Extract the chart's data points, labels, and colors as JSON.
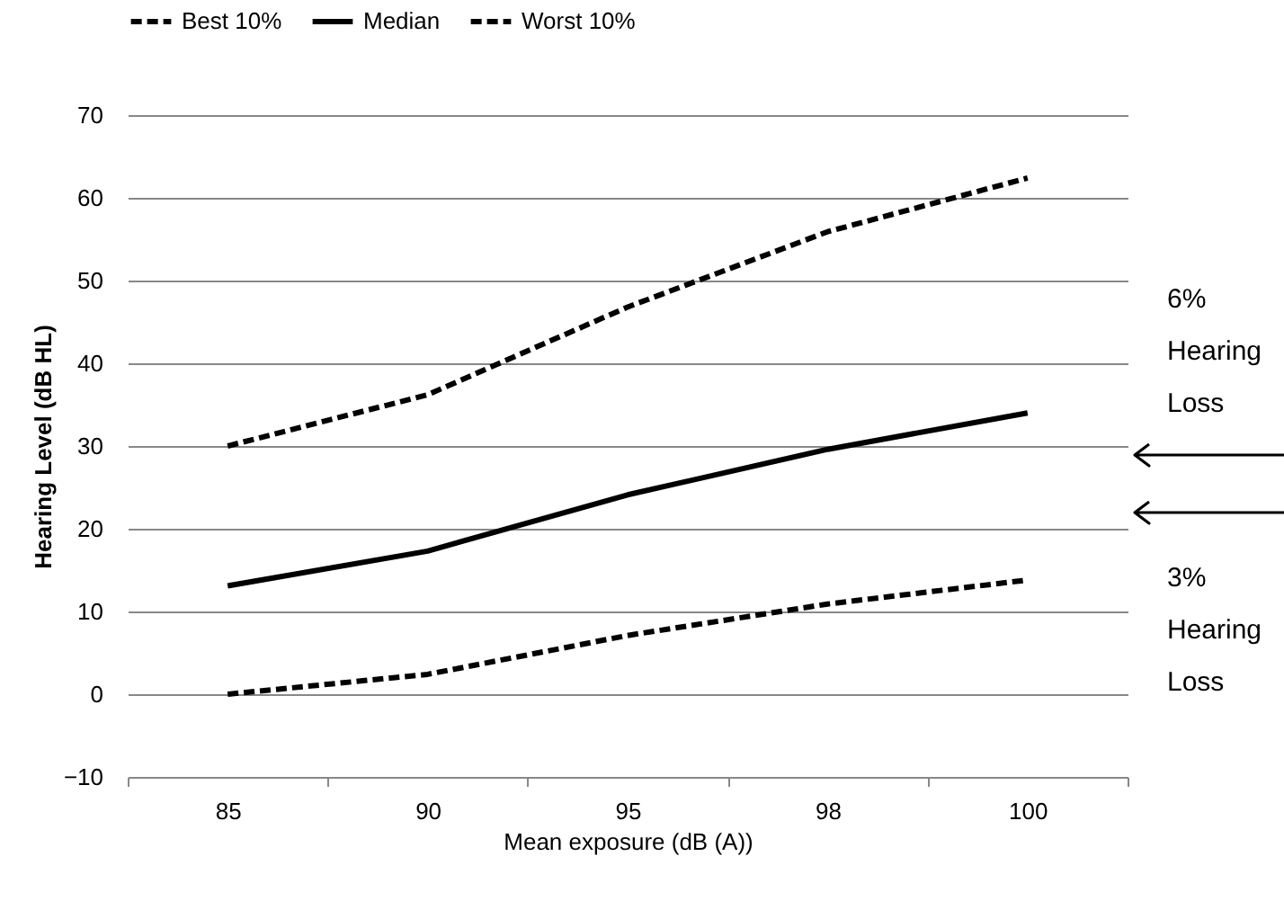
{
  "chart_data": {
    "type": "line",
    "xlabel": "Mean exposure (dB (A))",
    "ylabel": "Hearing Level (dB HL)",
    "categories": [
      "85",
      "90",
      "95",
      "98",
      "100"
    ],
    "series": [
      {
        "name": "Best 10%",
        "color": "#000000",
        "line_style": "dashed",
        "values": [
          0,
          2.4,
          7.1,
          10.9,
          13.8
        ]
      },
      {
        "name": "Median",
        "color": "#000000",
        "line_style": "solid",
        "values": [
          13.1,
          17.3,
          24.1,
          29.6,
          34
        ]
      },
      {
        "name": "Worst 10%",
        "color": "#000000",
        "line_style": "dashed",
        "values": [
          30,
          36.2,
          46.8,
          55.9,
          62.4
        ]
      }
    ],
    "ylim": [
      -10,
      70
    ],
    "yticks": [
      -10,
      0,
      10,
      20,
      30,
      40,
      50,
      60,
      70
    ],
    "grid": "y",
    "legend": "top",
    "marker": "none",
    "annotations": [
      "6% Hearing Loss",
      "3% Hearing Loss"
    ]
  }
}
